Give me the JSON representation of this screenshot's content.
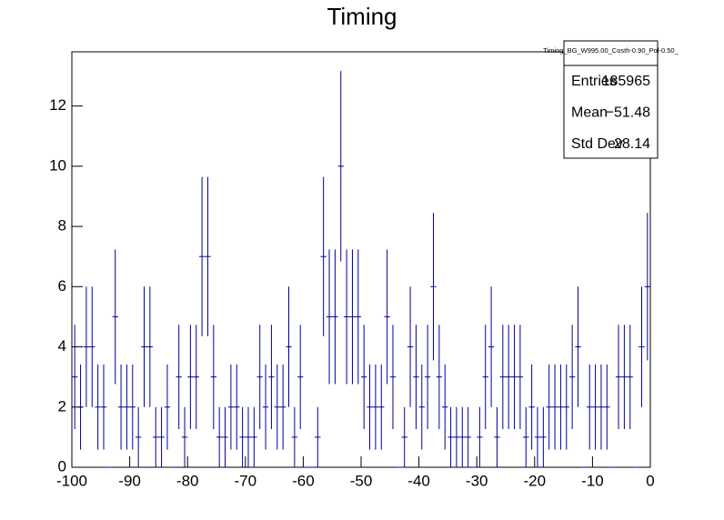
{
  "chart_data": {
    "type": "histogram",
    "title": "Timing",
    "bins": [
      -100,
      -99,
      -98,
      -97,
      -96,
      -95,
      -94,
      -93,
      -92,
      -91,
      -90,
      -89,
      -88,
      -87,
      -86,
      -85,
      -84,
      -83,
      -82,
      -81,
      -80,
      -79,
      -78,
      -77,
      -76,
      -75,
      -74,
      -73,
      -72,
      -71,
      -70,
      -69,
      -68,
      -67,
      -66,
      -65,
      -64,
      -63,
      -62,
      -61,
      -60,
      -59,
      -58,
      -57,
      -56,
      -55,
      -54,
      -53,
      -52,
      -51,
      -50,
      -49,
      -48,
      -47,
      -46,
      -45,
      -44,
      -43,
      -42,
      -41,
      -40,
      -39,
      -38,
      -37,
      -36,
      -35,
      -34,
      -33,
      -32,
      -31,
      -30,
      -29,
      -28,
      -27,
      -26,
      -25,
      -24,
      -23,
      -22,
      -21,
      -20,
      -19,
      -18,
      -17,
      -16,
      -15,
      -14,
      -13,
      -12,
      -11,
      -10,
      -9,
      -8,
      -7,
      -6,
      -5,
      -4,
      -3,
      -2,
      -1,
      0
    ],
    "values": [
      3,
      2,
      4,
      4,
      2,
      2,
      0,
      5,
      2,
      2,
      2,
      1,
      4,
      4,
      1,
      1,
      2,
      0,
      3,
      1,
      3,
      3,
      7,
      7,
      3,
      1,
      1,
      2,
      2,
      1,
      1,
      1,
      3,
      2,
      3,
      2,
      2,
      4,
      1,
      3,
      0,
      0,
      1,
      7,
      5,
      5,
      10,
      5,
      5,
      5,
      3,
      2,
      2,
      2,
      5,
      3,
      0,
      1,
      4,
      3,
      2,
      3,
      6,
      3,
      2,
      1,
      1,
      1,
      1,
      0,
      1,
      3,
      4,
      1,
      3,
      3,
      3,
      3,
      1,
      2,
      1,
      1,
      2,
      2,
      2,
      2,
      3,
      4,
      0,
      2,
      2,
      2,
      2,
      0,
      3,
      3,
      3,
      0,
      4,
      6
    ],
    "color": "#000099",
    "xlim": [
      -100,
      0
    ],
    "xticks": [
      -100,
      -90,
      -80,
      -70,
      -60,
      -50,
      -40,
      -30,
      -20,
      -10,
      0
    ],
    "ylim": [
      0,
      13.8
    ],
    "yticks": [
      0,
      2,
      4,
      6,
      8,
      10,
      12
    ],
    "stats": {
      "title": "Timing_BG_W995.00_Costh-0.90_Pol-0.50_",
      "rows": [
        [
          "Entries",
          "185965"
        ],
        [
          "Mean",
          "−51.48"
        ],
        [
          "Std Dev",
          "28.14"
        ]
      ]
    }
  }
}
